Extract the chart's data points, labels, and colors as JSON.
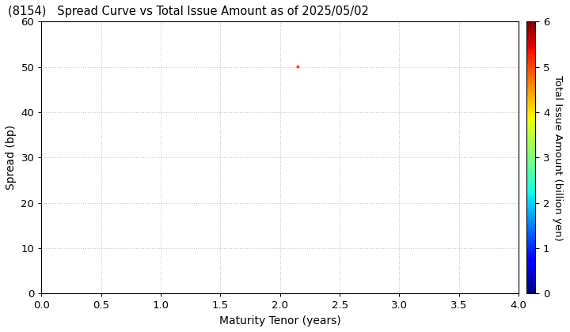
{
  "title": "(8154)   Spread Curve vs Total Issue Amount as of 2025/05/02",
  "xlabel": "Maturity Tenor (years)",
  "ylabel": "Spread (bp)",
  "colorbar_label": "Total Issue Amount (billion yen)",
  "xlim": [
    0.0,
    4.0
  ],
  "ylim": [
    0,
    60
  ],
  "xticks": [
    0.0,
    0.5,
    1.0,
    1.5,
    2.0,
    2.5,
    3.0,
    3.5,
    4.0
  ],
  "yticks": [
    0,
    10,
    20,
    30,
    40,
    50,
    60
  ],
  "colorbar_min": 0,
  "colorbar_max": 6,
  "colorbar_ticks": [
    0,
    1,
    2,
    3,
    4,
    5,
    6
  ],
  "scatter_x": [
    2.15
  ],
  "scatter_y": [
    50
  ],
  "scatter_value": [
    5.0
  ],
  "scatter_size": 8,
  "colormap": "jet",
  "bg_color": "#ffffff",
  "grid_color": "#bbbbbb",
  "title_fontsize": 10.5,
  "axis_fontsize": 10,
  "tick_fontsize": 9.5,
  "colorbar_fontsize": 9.5
}
